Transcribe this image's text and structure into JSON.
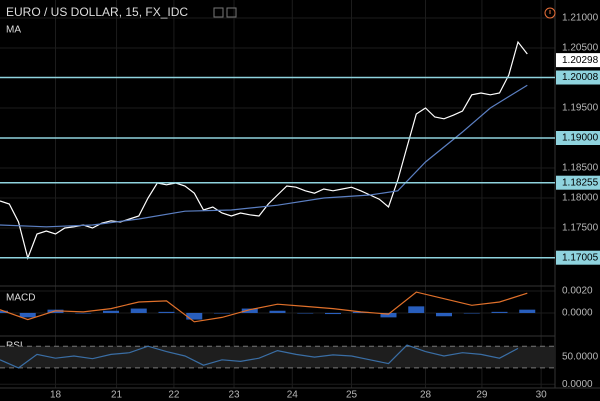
{
  "chart_data": [
    {
      "type": "price",
      "title": "EURO / US DOLLAR, 15, FX_IDC",
      "indicator": "MA",
      "xlim": [
        0,
        60
      ],
      "xticks": [
        {
          "value": 6,
          "label": "18"
        },
        {
          "value": 12.6,
          "label": "21"
        },
        {
          "value": 18.8,
          "label": "22"
        },
        {
          "value": 25.3,
          "label": "23"
        },
        {
          "value": 31.6,
          "label": "24"
        },
        {
          "value": 38,
          "label": "25"
        },
        {
          "value": 46,
          "label": "28"
        },
        {
          "value": 52.1,
          "label": "29"
        },
        {
          "value": 58.5,
          "label": "30"
        }
      ],
      "ylim": [
        1.1655,
        1.213
      ],
      "yticks": [
        {
          "value": 1.21,
          "label": "1.21000"
        },
        {
          "value": 1.205,
          "label": "1.20500"
        },
        {
          "value": 1.195,
          "label": "1.19500"
        },
        {
          "value": 1.185,
          "label": "1.18500"
        },
        {
          "value": 1.18,
          "label": "1.18000"
        },
        {
          "value": 1.175,
          "label": "1.17500"
        }
      ],
      "levels": {
        "color": "#8fd3de",
        "values": [
          1.20008,
          1.19,
          1.18255,
          1.17005
        ],
        "value_labels": [
          "1.20008",
          "1.19000",
          "1.18255",
          "1.17005"
        ]
      },
      "last": {
        "value": 1.20298,
        "label": "1.20298"
      },
      "series": [
        {
          "color": "#ffffff",
          "x": [
            0,
            1,
            2,
            3,
            4,
            5,
            6,
            7,
            8,
            9,
            10,
            11,
            12,
            13,
            14,
            15,
            16,
            17,
            18,
            19,
            20,
            21,
            22,
            23,
            24,
            25,
            26,
            27,
            28,
            29,
            30,
            31,
            32,
            33,
            34,
            35,
            36,
            37,
            38,
            39,
            40,
            41,
            42,
            43,
            44,
            45,
            46,
            47,
            48,
            49,
            50,
            51,
            52,
            53,
            54,
            55,
            56,
            57
          ],
          "values": [
            1.1795,
            1.179,
            1.176,
            1.17,
            1.174,
            1.1745,
            1.174,
            1.175,
            1.1752,
            1.1755,
            1.175,
            1.1758,
            1.1762,
            1.176,
            1.1765,
            1.177,
            1.18,
            1.1825,
            1.1822,
            1.1825,
            1.182,
            1.1808,
            1.178,
            1.1785,
            1.1775,
            1.177,
            1.1775,
            1.1772,
            1.177,
            1.179,
            1.1805,
            1.182,
            1.1818,
            1.1812,
            1.1808,
            1.1815,
            1.1812,
            1.1815,
            1.1818,
            1.1812,
            1.1805,
            1.1798,
            1.1785,
            1.183,
            1.1885,
            1.194,
            1.195,
            1.1935,
            1.1932,
            1.1938,
            1.1945,
            1.1972,
            1.1975,
            1.1972,
            1.1975,
            1.2005,
            1.206,
            1.204
          ]
        },
        {
          "color": "#5b7fc2",
          "x": [
            0,
            5,
            10,
            15,
            20,
            25,
            30,
            35,
            40,
            43,
            46,
            50,
            53,
            57
          ],
          "values": [
            1.1755,
            1.1752,
            1.1755,
            1.1765,
            1.1778,
            1.178,
            1.1788,
            1.18,
            1.1805,
            1.1812,
            1.186,
            1.191,
            1.195,
            1.1988
          ]
        }
      ]
    },
    {
      "type": "macd",
      "title": "MACD",
      "ylim": [
        -0.00155,
        0.00227
      ],
      "yticks": [
        {
          "value": 0.002,
          "label": "0.0020"
        },
        {
          "value": 0,
          "label": "0.0000"
        }
      ],
      "series": [
        {
          "color": "#2f6fde",
          "style": "histogram",
          "x": [
            0,
            3,
            6,
            9,
            12,
            15,
            18,
            21,
            24,
            27,
            30,
            33,
            36,
            39,
            42,
            45,
            48,
            51,
            54,
            57
          ],
          "values": [
            0.0002,
            -0.0004,
            0.0003,
            0,
            0.0002,
            0.0004,
            0.0001,
            -0.0006,
            0,
            0.0004,
            0.0002,
            0,
            -0.0001,
            0.0001,
            -0.0004,
            0.0006,
            -0.0003,
            0,
            0.0001,
            0.0003
          ]
        },
        {
          "color": "#e0702a",
          "x": [
            0,
            3,
            6,
            9,
            12,
            15,
            18,
            21,
            24,
            27,
            30,
            33,
            36,
            39,
            42,
            45,
            48,
            51,
            54,
            57
          ],
          "values": [
            0.0003,
            -0.0006,
            0.0002,
            0.0001,
            0.0004,
            0.001,
            0.0011,
            -0.0008,
            -0.0004,
            0.0003,
            0.0008,
            0.0006,
            0.0004,
            0.0001,
            -0.0001,
            0.0019,
            0.0013,
            0.0007,
            0.001,
            0.0018
          ]
        }
      ]
    },
    {
      "type": "rsi",
      "title": "RSI",
      "ylim": [
        -7,
        87
      ],
      "yticks": [
        {
          "value": 50,
          "label": "50.0000"
        },
        {
          "value": 0,
          "label": "0.0000"
        }
      ],
      "bands": [
        30,
        70
      ],
      "series": [
        {
          "color": "#3a6ea5",
          "x": [
            0,
            2,
            4,
            6,
            8,
            10,
            12,
            14,
            16,
            18,
            20,
            22,
            24,
            26,
            28,
            30,
            32,
            34,
            36,
            38,
            40,
            42,
            44,
            46,
            48,
            50,
            52,
            54,
            56
          ],
          "values": [
            45,
            30,
            55,
            48,
            52,
            47,
            55,
            58,
            70,
            60,
            52,
            35,
            45,
            42,
            48,
            62,
            55,
            50,
            54,
            52,
            45,
            38,
            72,
            60,
            52,
            58,
            55,
            48,
            66
          ]
        }
      ]
    }
  ]
}
